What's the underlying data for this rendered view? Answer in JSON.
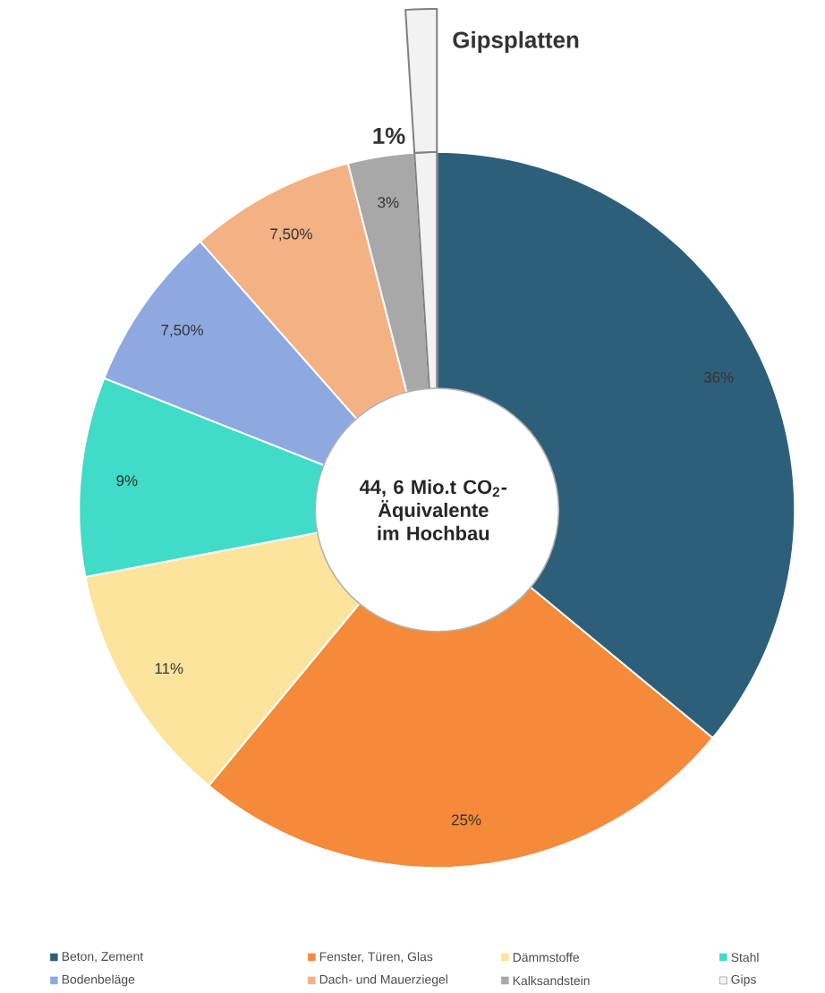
{
  "chart_data": {
    "type": "donut",
    "categories": [
      "Beton, Zement",
      "Fenster, Türen, Glas",
      "Dämmstoffe",
      "Stahl",
      "Bodenbeläge",
      "Dach- und Mauerziegel",
      "Kalksandstein",
      "Gips"
    ],
    "values": [
      36,
      25,
      11,
      9,
      7.5,
      7.5,
      3,
      1
    ],
    "value_labels": [
      "36%",
      "25%",
      "11%",
      "9%",
      "7,50%",
      "7,50%",
      "3%",
      "1%"
    ],
    "colors": [
      "#2e5f7a",
      "#f58a3a",
      "#fde49c",
      "#40dcc8",
      "#8ea9e0",
      "#f4b183",
      "#a8a8a8",
      "#f2f2f2"
    ],
    "annotations": [
      "44, 6 Mio.t CO$_{2}$-Äquivalente im Hochbau",
      "Gipsplatten"
    ],
    "legend": "bottom"
  }
}
